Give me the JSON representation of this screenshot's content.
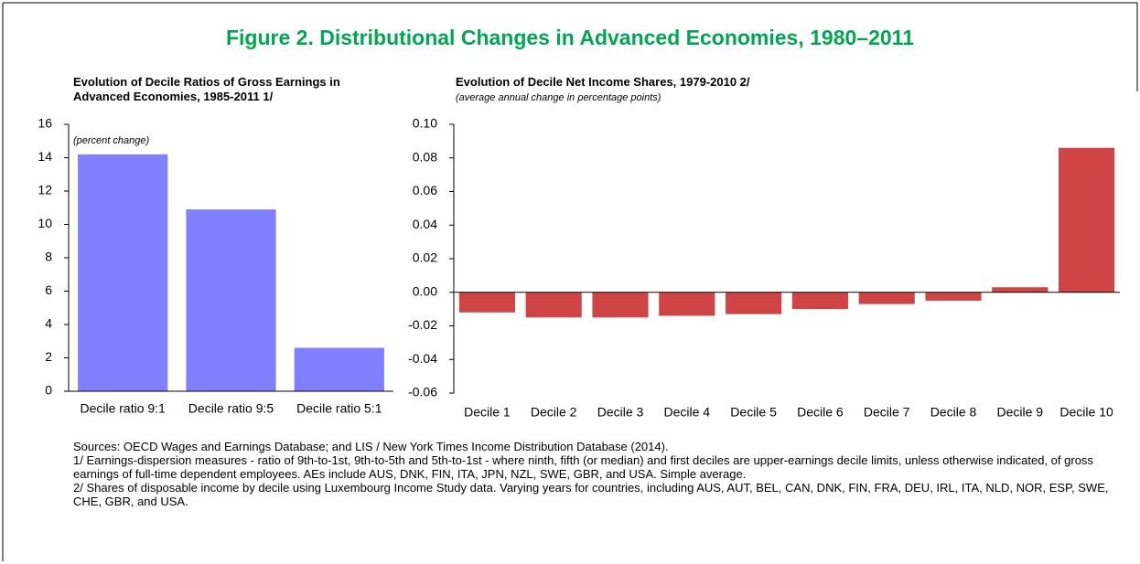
{
  "title": "Figure 2. Distributional Changes in Advanced Economies, 1980–2011",
  "notes": [
    "Sources: OECD Wages and Earnings Database; and LIS / New York Times Income Distribution Database (2014).",
    "1/ Earnings-dispersion measures - ratio of 9th-to-1st, 9th-to-5th and 5th-to-1st - where ninth, fifth (or median) and first deciles are upper-earnings decile limits, unless otherwise indicated, of gross earnings of full-time dependent employees. AEs include AUS, DNK, FIN, ITA, JPN, NZL, SWE, GBR, and USA. Simple average.",
    "2/ Shares of disposable income by decile using Luxembourg Income Study data. Varying years for countries, including AUS, AUT, BEL, CAN, DNK, FIN, FRA, DEU, IRL, ITA, NLD, NOR, ESP, SWE, CHE, GBR, and USA."
  ],
  "chart_data": [
    {
      "type": "bar",
      "title": "Evolution of Decile Ratios of Gross Earnings in Advanced Economies, 1985-2011 1/",
      "subtitle": "(percent change)",
      "categories": [
        "Decile ratio 9:1",
        "Decile ratio 9:5",
        "Decile ratio 5:1"
      ],
      "values": [
        14.2,
        10.9,
        2.6
      ],
      "color": "#8080ff",
      "ylim": [
        0,
        16
      ],
      "yticks": [
        0,
        2,
        4,
        6,
        8,
        10,
        12,
        14,
        16
      ]
    },
    {
      "type": "bar",
      "title": "Evolution of Decile Net Income Shares, 1979-2010 2/",
      "subtitle": "(average annual change in percentage points)",
      "categories": [
        "Decile 1",
        "Decile 2",
        "Decile 3",
        "Decile 4",
        "Decile 5",
        "Decile 6",
        "Decile 7",
        "Decile 8",
        "Decile 9",
        "Decile 10"
      ],
      "values": [
        -0.012,
        -0.015,
        -0.015,
        -0.014,
        -0.013,
        -0.01,
        -0.007,
        -0.005,
        0.003,
        0.086
      ],
      "color": "#cf4444",
      "ylim": [
        -0.06,
        0.1
      ],
      "yticks": [
        -0.06,
        -0.04,
        -0.02,
        {
          "value": 0,
          "label": "0.00"
        },
        0.02,
        0.04,
        0.06,
        0.08,
        {
          "value": 0.1,
          "label": "0.10"
        }
      ]
    }
  ]
}
